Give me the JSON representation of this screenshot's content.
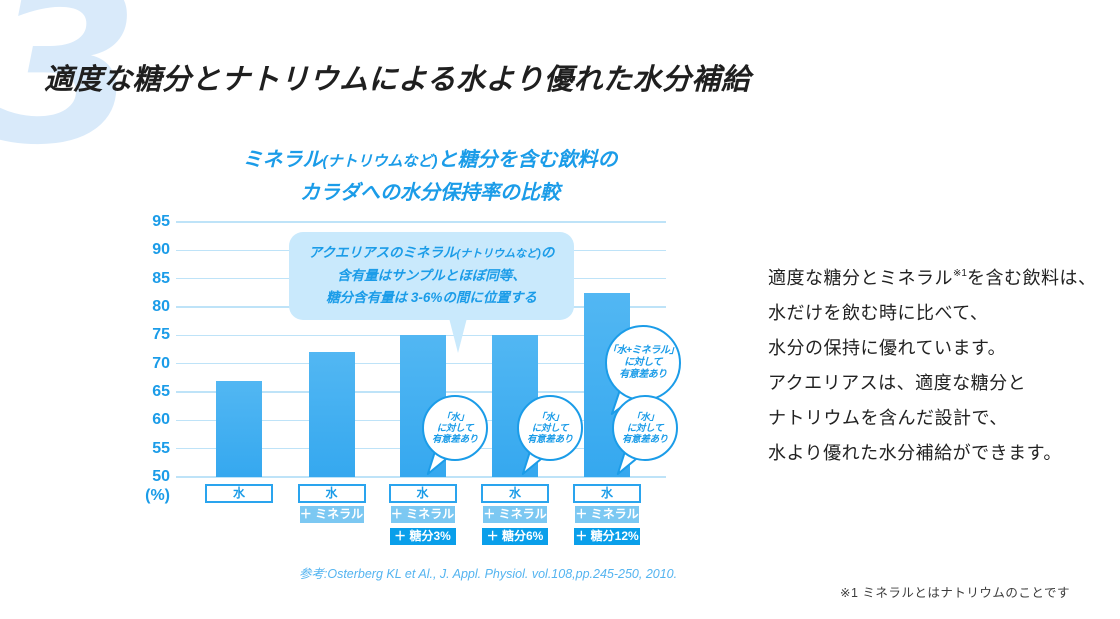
{
  "watermark": "3",
  "page_title": "適度な糖分とナトリウムによる水より優れた水分補給",
  "chart": {
    "title_line1_main": "ミネラル",
    "title_line1_small": "(ナトリウムなど)",
    "title_line1_rest": "と糖分を含む飲料の",
    "title_line2": "カラダへの水分保持率の比較"
  },
  "chart_data": {
    "type": "bar",
    "title": "ミネラル(ナトリウムなど)と糖分を含む飲料のカラダへの水分保持率の比較",
    "categories": [
      "水",
      "水＋ミネラル",
      "水＋ミネラル＋糖分3%",
      "水＋ミネラル＋糖分6%",
      "水＋ミネラル＋糖分12%"
    ],
    "values": [
      67,
      72,
      75,
      75,
      82.5
    ],
    "ylabel": "(%)",
    "ylim": [
      50,
      95
    ],
    "ytick_step": 5,
    "grid": true,
    "legend": "none",
    "bar_labels": [
      {
        "water": "水",
        "mineral": null,
        "sugar": null
      },
      {
        "water": "水",
        "mineral": "＋ ミネラル",
        "sugar": null
      },
      {
        "water": "水",
        "mineral": "＋ ミネラル",
        "sugar": "＋ 糖分3%"
      },
      {
        "water": "水",
        "mineral": "＋ ミネラル",
        "sugar": "＋ 糖分6%"
      },
      {
        "water": "水",
        "mineral": "＋ ミネラル",
        "sugar": "＋ 糖分12%"
      }
    ]
  },
  "callout": {
    "line1_main": "アクエリアスのミネラル",
    "line1_small": "(ナトリウムなど)",
    "line1_tail": "の",
    "line2": "含有量はサンプルとほぼ同等、",
    "line3": "糖分含有量は 3-6%の間に位置する"
  },
  "annotations": {
    "significance_bubbles": [
      {
        "target_bar_index": 2,
        "size": "small",
        "lines": [
          "「水」",
          "に対して",
          "有意差あり"
        ]
      },
      {
        "target_bar_index": 3,
        "size": "small",
        "lines": [
          "「水」",
          "に対して",
          "有意差あり"
        ]
      },
      {
        "target_bar_index": 4,
        "size": "large",
        "lines": [
          "「水+ミネラル」",
          "に対して",
          "有意差あり"
        ]
      },
      {
        "target_bar_index": 4,
        "size": "small",
        "lines": [
          "「水」",
          "に対して",
          "有意差あり"
        ]
      }
    ]
  },
  "right_text": {
    "line1_before": "適度な糖分とミネラル",
    "line1_sup": "※1",
    "line1_after": "を含む飲料は、",
    "line2": "水だけを飲む時に比べて、",
    "line3": "水分の保持に優れています。",
    "line4": "アクエリアスは、適度な糖分と",
    "line5": "ナトリウムを含んだ設計で、",
    "line6": "水より優れた水分補給ができます。"
  },
  "citation": "参考:Osterberg KL et Al., J. Appl. Physiol. vol.108,pp.245-250, 2010.",
  "footnote": "※1 ミネラルとはナトリウムのことです",
  "colors": {
    "accent": "#1b9ce8",
    "bar_top": "#52b7f3",
    "bar_bottom": "#35a8ef",
    "gridline": "#bee3f8",
    "mineral_badge": "#7cc8f2",
    "sugar_badge": "#0a9fea",
    "callout_background": "#c9e9fc",
    "watermark": "#d9eafa",
    "citation": "#54b4f0"
  }
}
